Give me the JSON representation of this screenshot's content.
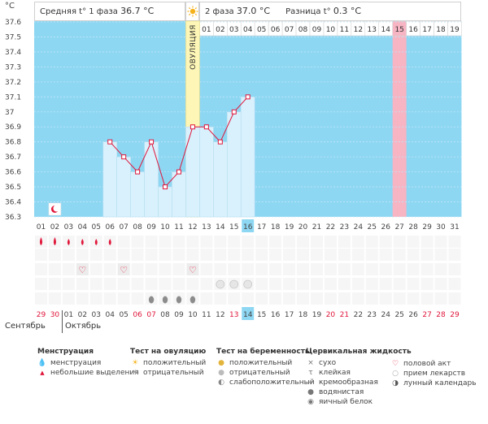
{
  "unit_label": "°C",
  "header": {
    "phase1_label": "Средняя t° 1 фаза",
    "phase1_value": "36.7 °C",
    "sun_icon": "sun-icon",
    "phase2_label": "2 фаза",
    "phase2_value": "37.0 °C",
    "diff_label": "Разница t°",
    "diff_value": "0.3 °C"
  },
  "ovulation_label": "ОВУЛЯЦИЯ",
  "colors": {
    "phase1_bg": "#8ed7f3",
    "phase2_bg": "#8ed7f3",
    "ovulation": "#fdf6b6",
    "highlight_day": "#f7b4c3",
    "bar_fill": "#d8f1fd",
    "line": "#e0163a",
    "today_box": "#8ed7f3",
    "weekend_red": "#e0163a"
  },
  "chart_data": {
    "type": "line",
    "ylim": [
      36.3,
      37.6
    ],
    "yticks": [
      "36.3",
      "36.4",
      "36.5",
      "36.6",
      "36.7",
      "36.8",
      "36.9",
      "37",
      "37.1",
      "37.2",
      "37.3",
      "37.4",
      "37.5",
      "37.6"
    ],
    "cycle_days": [
      "01",
      "02",
      "03",
      "04",
      "05",
      "06",
      "07",
      "08",
      "09",
      "10",
      "11",
      "12",
      "13",
      "14",
      "15",
      "16",
      "17",
      "18",
      "19",
      "20",
      "21",
      "22",
      "23",
      "24",
      "25",
      "26",
      "27",
      "28",
      "29",
      "30",
      "31"
    ],
    "ovulation_day": "12",
    "phase2_numbers": [
      "01",
      "02",
      "03",
      "04",
      "05",
      "06",
      "07",
      "08",
      "09",
      "10",
      "11",
      "12",
      "13",
      "14",
      "15",
      "16",
      "17",
      "18",
      "19"
    ],
    "highlight_phase2_number": "15",
    "today_cycle_day": "16",
    "series": [
      {
        "days": [
          "06",
          "07",
          "08",
          "09",
          "10",
          "11",
          "12",
          "13",
          "14",
          "15",
          "16"
        ],
        "values": [
          36.8,
          36.7,
          36.6,
          36.8,
          36.5,
          36.6,
          36.9,
          36.9,
          36.8,
          37.0,
          37.1
        ]
      }
    ]
  },
  "markers": {
    "moon_day": "02",
    "menstruation_days": [
      "01",
      "02",
      "03",
      "04",
      "05",
      "06"
    ],
    "menstruation_big_days": [
      "01",
      "02"
    ],
    "sex_days": [
      "04",
      "07",
      "12"
    ],
    "pregnancy_test_days": [
      "14",
      "15",
      "16"
    ],
    "fluid_days": [
      "09",
      "10",
      "11",
      "12"
    ]
  },
  "calendar": {
    "dates": [
      "29",
      "30",
      "01",
      "02",
      "03",
      "04",
      "05",
      "06",
      "07",
      "08",
      "09",
      "10",
      "11",
      "12",
      "13",
      "14",
      "15",
      "16",
      "17",
      "18",
      "19",
      "20",
      "21",
      "22",
      "23",
      "24",
      "25",
      "26",
      "27",
      "28",
      "29"
    ],
    "red_dates": [
      "29",
      "30",
      "06",
      "07",
      "13",
      "20",
      "21",
      "27",
      "28"
    ],
    "today_date": "14",
    "months": [
      "Сентябрь",
      "Октябрь"
    ]
  },
  "legend": {
    "menstruation": {
      "title": "Менструация",
      "items": [
        {
          "icon": "drop-icon",
          "label": "менструация"
        },
        {
          "icon": "small-drop-icon",
          "label": "небольшие выделения"
        }
      ]
    },
    "ovulation_test": {
      "title": "Тест на овуляцию",
      "items": [
        {
          "icon": "sun-positive-icon",
          "label": "положительный"
        },
        {
          "icon": "sun-negative-icon",
          "label": "отрицательный"
        }
      ]
    },
    "pregnancy_test": {
      "title": "Тест на беременность",
      "items": [
        {
          "icon": "test-positive-icon",
          "label": "положительный"
        },
        {
          "icon": "test-negative-icon",
          "label": "отрицательный"
        },
        {
          "icon": "test-weak-icon",
          "label": "слабоположительный"
        }
      ]
    },
    "cervical": {
      "title": "Цервикальная жидкость",
      "items": [
        {
          "icon": "cross-icon",
          "label": "сухо"
        },
        {
          "icon": "sticky-icon",
          "label": "клейкая"
        },
        {
          "icon": "creamy-icon",
          "label": "кремообразная"
        },
        {
          "icon": "watery-icon",
          "label": "водянистая"
        },
        {
          "icon": "eggwhite-icon",
          "label": "яичный белок"
        }
      ]
    },
    "other": {
      "items": [
        {
          "icon": "heart-icon",
          "label": "половой акт"
        },
        {
          "icon": "pill-icon",
          "label": "прием лекарств"
        },
        {
          "icon": "moon-icon",
          "label": "лунный календарь"
        }
      ]
    }
  }
}
